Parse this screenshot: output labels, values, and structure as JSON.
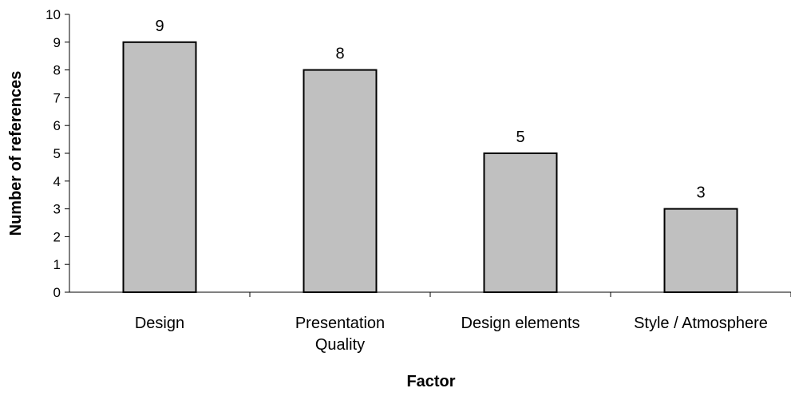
{
  "chart_data": {
    "type": "bar",
    "title": "",
    "xlabel": "Factor",
    "ylabel": "Number of references",
    "categories": [
      [
        "Design"
      ],
      [
        "Presentation",
        "Quality"
      ],
      [
        "Design elements"
      ],
      [
        "Style / Atmosphere"
      ]
    ],
    "values": [
      9,
      8,
      5,
      3
    ],
    "data_labels": [
      "9",
      "8",
      "5",
      "3"
    ],
    "ylim": [
      0,
      10
    ],
    "yticks": [
      "0",
      "1",
      "2",
      "3",
      "4",
      "5",
      "6",
      "7",
      "8",
      "9",
      "10"
    ],
    "grid": false,
    "legend": "none",
    "colors": {
      "bar_fill": "#c0c0c0",
      "bar_stroke": "#000000",
      "axis": "#000000"
    }
  }
}
